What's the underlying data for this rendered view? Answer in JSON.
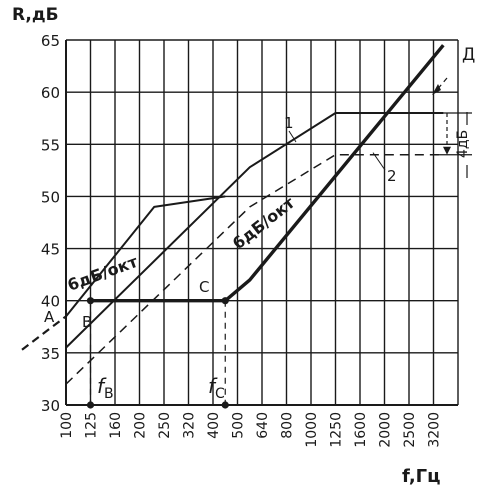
{
  "chart_data": {
    "type": "line",
    "ylabel": "R,дБ",
    "xlabel": "f,Гц",
    "x_categories": [
      "100",
      "125",
      "160",
      "200",
      "250",
      "320",
      "400",
      "500",
      "640",
      "800",
      "1000",
      "1250",
      "1600",
      "2000",
      "2500",
      "3200"
    ],
    "y_ticks": [
      "30",
      "35",
      "40",
      "45",
      "50",
      "55",
      "60",
      "65"
    ],
    "ylim": [
      30,
      65
    ],
    "grid": true,
    "series": [
      {
        "name": "1",
        "style": "solid",
        "points": [
          [
            0,
            35.5
          ],
          [
            7.5,
            52.8
          ],
          [
            11,
            58.0
          ],
          [
            15.4,
            58.0
          ]
        ]
      },
      {
        "name": "2",
        "style": "dashed",
        "points": [
          [
            0,
            32.0
          ],
          [
            7.5,
            49.0
          ],
          [
            11,
            54.0
          ],
          [
            15.4,
            54.0
          ]
        ]
      },
      {
        "name": "Д",
        "style": "bold",
        "points": [
          [
            1,
            40
          ],
          [
            6.5,
            40
          ],
          [
            7.5,
            42.0
          ],
          [
            15.4,
            64.5
          ]
        ]
      },
      {
        "name": "A",
        "style": "solid",
        "points": [
          [
            0,
            38.5
          ],
          [
            3.6,
            49.0
          ],
          [
            6.5,
            50.0
          ]
        ]
      }
    ],
    "annotations": {
      "slope_low": "6дБ/окт",
      "slope_high": "6дБ/окт",
      "point_a": "A",
      "point_b": "B",
      "point_c": "C",
      "point_d": "Д",
      "fb": "f",
      "fb_sub": "В",
      "fc": "f",
      "fc_sub": "C",
      "delta": "4дБ",
      "curve1": "1",
      "curve2": "2"
    }
  }
}
